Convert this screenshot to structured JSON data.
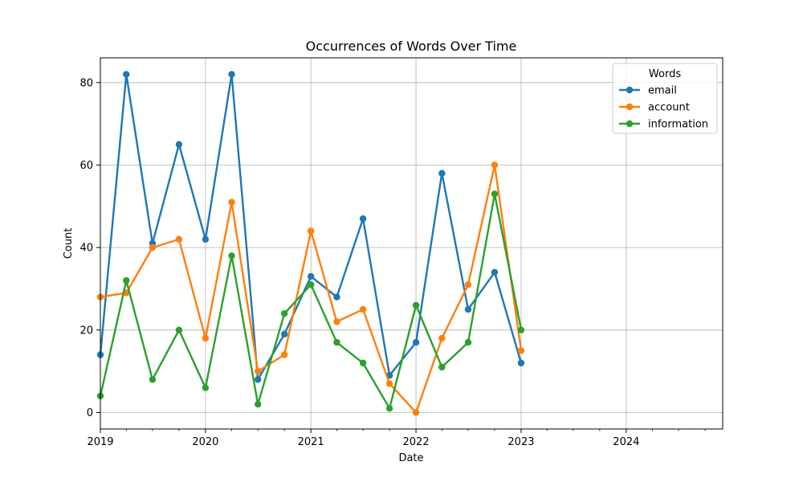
{
  "chart_data": {
    "type": "line",
    "title": "Occurrences of Words Over Time",
    "xlabel": "Date",
    "ylabel": "Count",
    "x_tick_labels": [
      "2019",
      "2020",
      "2021",
      "2022",
      "2023",
      "2024"
    ],
    "y_tick_labels": [
      "0",
      "20",
      "40",
      "60",
      "80"
    ],
    "y_ticks": [
      0,
      20,
      40,
      60,
      80
    ],
    "xlim": [
      "2019-01-01",
      "2024-12-01"
    ],
    "ylim": [
      -4,
      86
    ],
    "grid": true,
    "legend": {
      "title": "Words",
      "placement": "top-right"
    },
    "x": [
      "2019-01-01",
      "2019-04-01",
      "2019-07-01",
      "2019-10-01",
      "2020-01-01",
      "2020-04-01",
      "2020-07-01",
      "2020-10-01",
      "2021-01-01",
      "2021-04-01",
      "2021-07-01",
      "2021-10-01",
      "2022-01-01",
      "2022-04-01",
      "2022-07-01",
      "2022-10-01",
      "2023-01-01"
    ],
    "series": [
      {
        "name": "email",
        "color": "#1f77b4",
        "values": [
          14,
          82,
          41,
          65,
          42,
          82,
          8,
          19,
          33,
          28,
          47,
          9,
          17,
          58,
          25,
          34,
          12
        ]
      },
      {
        "name": "account",
        "color": "#ff7f0e",
        "values": [
          28,
          29,
          40,
          42,
          18,
          51,
          10,
          14,
          44,
          22,
          25,
          7,
          0,
          18,
          31,
          60,
          15
        ]
      },
      {
        "name": "information",
        "color": "#2ca02c",
        "values": [
          4,
          32,
          8,
          20,
          6,
          38,
          2,
          24,
          31,
          17,
          12,
          1,
          26,
          11,
          17,
          53,
          20
        ]
      }
    ]
  }
}
